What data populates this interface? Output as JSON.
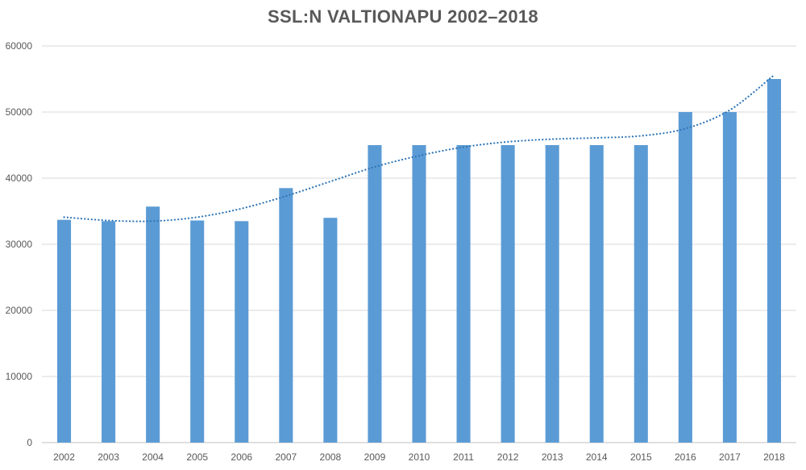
{
  "chart_data": {
    "type": "bar",
    "title": "SSL:N VALTIONAPU 2002–2018",
    "xlabel": "",
    "ylabel": "",
    "categories": [
      "2002",
      "2003",
      "2004",
      "2005",
      "2006",
      "2007",
      "2008",
      "2009",
      "2010",
      "2011",
      "2012",
      "2013",
      "2014",
      "2015",
      "2016",
      "2017",
      "2018"
    ],
    "values": [
      33700,
      33500,
      35700,
      33600,
      33500,
      38500,
      34000,
      45000,
      45000,
      45000,
      45000,
      45000,
      45000,
      45000,
      50000,
      50000,
      55000
    ],
    "ylim": [
      0,
      60000
    ],
    "yticks": [
      0,
      10000,
      20000,
      30000,
      40000,
      50000,
      60000
    ],
    "grid": true,
    "legend": "none",
    "trendline": {
      "style": "dotted",
      "values": [
        34100,
        33600,
        33500,
        34100,
        35400,
        37300,
        39500,
        41700,
        43400,
        44700,
        45500,
        45900,
        46100,
        46400,
        47500,
        50300,
        55600
      ]
    },
    "colors": {
      "bar": "#5b9bd5",
      "trendline": "#2e75b6",
      "title": "#595959",
      "grid": "#d9d9d9"
    }
  }
}
